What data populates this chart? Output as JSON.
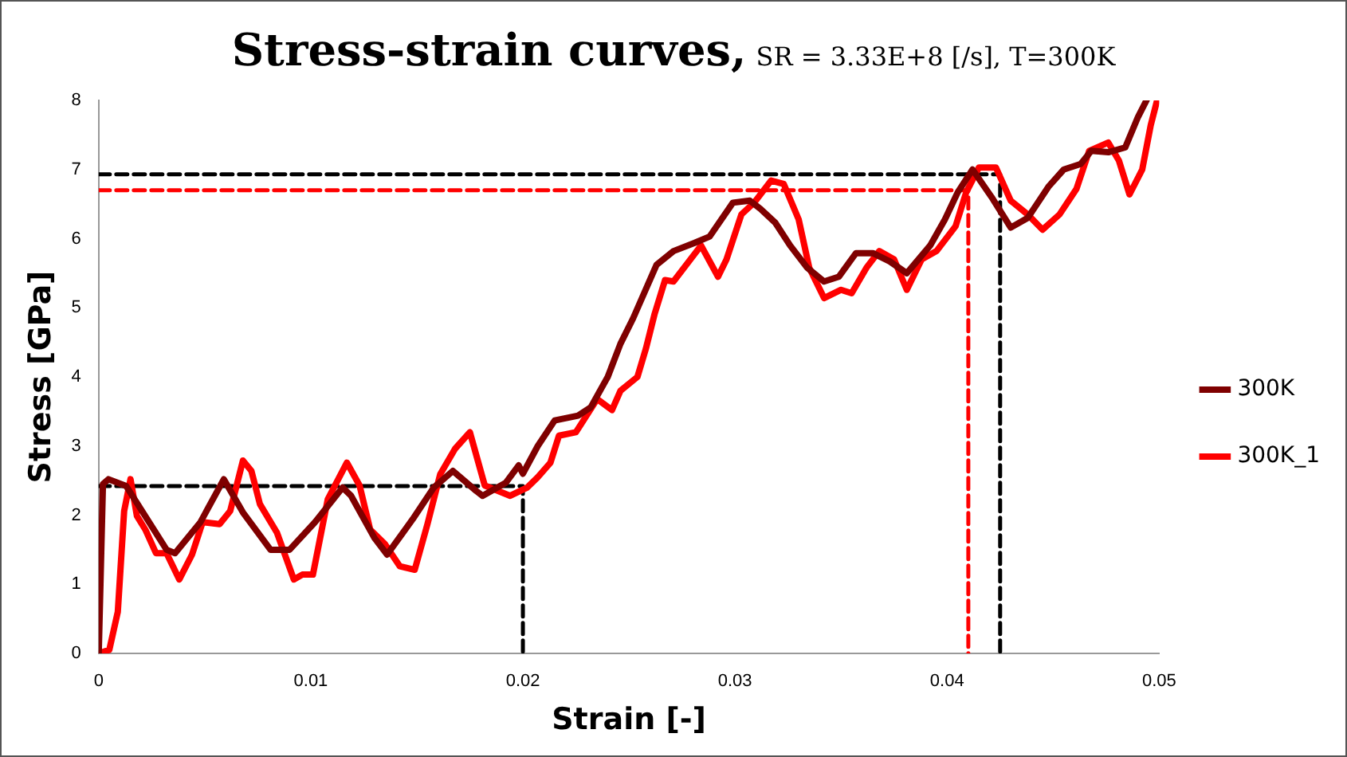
{
  "chart_data": {
    "type": "line",
    "title": "Stress-strain curves,",
    "subtitle": "SR = 3.33E+8 [/s], T=300K",
    "xlabel": "Strain [-]",
    "ylabel": "Stress [GPa]",
    "xlim": [
      0,
      0.05
    ],
    "xticks": [
      0,
      0.01,
      0.02,
      0.03,
      0.04,
      0.05
    ],
    "ylim": [
      0,
      8
    ],
    "yticks": [
      0,
      1,
      2,
      3,
      4,
      5,
      6,
      7,
      8
    ],
    "grid": false,
    "legend": "right",
    "marker": "none",
    "line_style": "solid",
    "series": [
      {
        "name": "300K",
        "color": "#7f0000",
        "x": [
          0,
          0.0002,
          0.00046,
          0.0013,
          0.0032,
          0.0036,
          0.0048,
          0.0059,
          0.0068,
          0.0081,
          0.009,
          0.0102,
          0.0115,
          0.0119,
          0.013,
          0.0136,
          0.0148,
          0.0158,
          0.0167,
          0.0178,
          0.0181,
          0.0192,
          0.0198,
          0.02,
          0.0207,
          0.0215,
          0.0226,
          0.0232,
          0.024,
          0.0246,
          0.0252,
          0.0263,
          0.0271,
          0.0281,
          0.0288,
          0.0299,
          0.0307,
          0.0312,
          0.0319,
          0.0326,
          0.0334,
          0.0342,
          0.0349,
          0.0357,
          0.0365,
          0.0373,
          0.0381,
          0.0392,
          0.0399,
          0.0405,
          0.0412,
          0.0421,
          0.043,
          0.0438,
          0.0448,
          0.0455,
          0.0463,
          0.0468,
          0.0476,
          0.0484,
          0.049,
          0.0494
        ],
        "values": [
          0,
          2.45,
          2.52,
          2.42,
          1.5,
          1.45,
          1.9,
          2.52,
          2.04,
          1.5,
          1.5,
          1.9,
          2.4,
          2.28,
          1.67,
          1.43,
          1.94,
          2.4,
          2.64,
          2.35,
          2.28,
          2.47,
          2.72,
          2.6,
          3.0,
          3.37,
          3.44,
          3.56,
          4.0,
          4.48,
          4.85,
          5.62,
          5.82,
          5.94,
          6.03,
          6.52,
          6.55,
          6.43,
          6.23,
          5.9,
          5.58,
          5.38,
          5.45,
          5.79,
          5.79,
          5.67,
          5.5,
          5.9,
          6.28,
          6.67,
          7.0,
          6.6,
          6.16,
          6.3,
          6.76,
          7.0,
          7.08,
          7.27,
          7.25,
          7.32,
          7.76,
          8.0
        ]
      },
      {
        "name": "300K_1",
        "color": "#ff0000",
        "x": [
          0,
          0.0005,
          0.0009,
          0.0012,
          0.0015,
          0.0018,
          0.0022,
          0.0027,
          0.0032,
          0.0038,
          0.0044,
          0.0049,
          0.0057,
          0.0062,
          0.0068,
          0.0072,
          0.0076,
          0.0084,
          0.0092,
          0.0096,
          0.0101,
          0.0108,
          0.0117,
          0.0123,
          0.0128,
          0.0135,
          0.0142,
          0.0149,
          0.0155,
          0.0161,
          0.0168,
          0.0175,
          0.0182,
          0.0194,
          0.0202,
          0.0207,
          0.0213,
          0.0217,
          0.0225,
          0.023,
          0.0235,
          0.0242,
          0.0246,
          0.0254,
          0.0258,
          0.0262,
          0.0267,
          0.0271,
          0.0284,
          0.0292,
          0.0296,
          0.0303,
          0.0309,
          0.0317,
          0.0323,
          0.033,
          0.0335,
          0.0342,
          0.035,
          0.0355,
          0.0362,
          0.0368,
          0.0375,
          0.0381,
          0.0388,
          0.0395,
          0.0404,
          0.0409,
          0.0415,
          0.0423,
          0.043,
          0.0438,
          0.0445,
          0.0453,
          0.0461,
          0.0467,
          0.0476,
          0.0481,
          0.0486,
          0.0492,
          0.0496,
          0.0499
        ],
        "values": [
          0,
          0.05,
          0.6,
          2.06,
          2.52,
          1.99,
          1.79,
          1.45,
          1.45,
          1.07,
          1.43,
          1.9,
          1.87,
          2.06,
          2.79,
          2.64,
          2.16,
          1.75,
          1.07,
          1.14,
          1.14,
          2.23,
          2.76,
          2.43,
          1.79,
          1.58,
          1.26,
          1.21,
          1.87,
          2.59,
          2.96,
          3.2,
          2.43,
          2.28,
          2.4,
          2.55,
          2.76,
          3.15,
          3.2,
          3.44,
          3.68,
          3.52,
          3.8,
          4.0,
          4.41,
          4.9,
          5.4,
          5.38,
          5.9,
          5.45,
          5.7,
          6.35,
          6.52,
          6.84,
          6.79,
          6.28,
          5.58,
          5.14,
          5.26,
          5.21,
          5.58,
          5.82,
          5.7,
          5.26,
          5.7,
          5.82,
          6.18,
          6.67,
          7.03,
          7.03,
          6.55,
          6.35,
          6.13,
          6.35,
          6.72,
          7.27,
          7.39,
          7.13,
          6.64,
          7.0,
          7.64,
          8.0
        ]
      },
      {
        "color": "#000000",
        "line_style": "dashed",
        "x": [
          0,
          0.02,
          0.02
        ],
        "values": [
          2.42,
          2.42,
          0
        ]
      },
      {
        "color": "#000000",
        "line_style": "dashed",
        "x": [
          0,
          0.0425,
          0.0425
        ],
        "values": [
          6.93,
          6.93,
          0
        ]
      },
      {
        "color": "#ff0000",
        "line_style": "dashed",
        "x": [
          0,
          0.041,
          0.041
        ],
        "values": [
          6.7,
          6.7,
          0
        ]
      }
    ]
  }
}
